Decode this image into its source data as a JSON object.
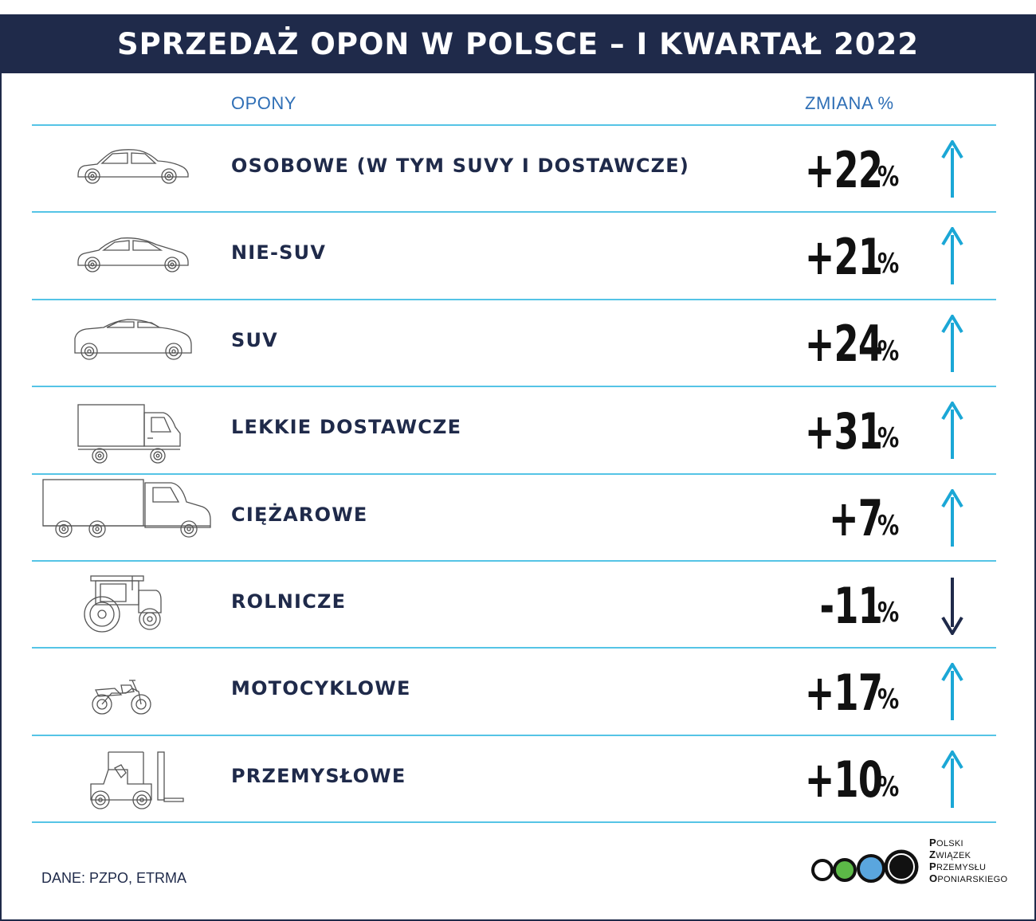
{
  "title": "SPRZEDAŻ OPON W POLSCE – I KWARTAŁ 2022",
  "columns": {
    "tyres": "OPONY",
    "change": "ZMIANA %"
  },
  "colors": {
    "navy": "#1f2a4a",
    "accent_cyan": "#1ba7d6",
    "divider": "#55c4e6",
    "header_text": "#2f6fb6",
    "arrow_down": "#1f2a4a"
  },
  "chart_data": {
    "type": "table",
    "title": "SPRZEDAŻ OPON W POLSCE – I KWARTAŁ 2022",
    "columns": [
      "OPONY",
      "ZMIANA %"
    ],
    "rows": [
      {
        "category": "OSOBOWE (W TYM SUVY I DOSTAWCZE)",
        "value": 22,
        "display": "+22",
        "unit": "%",
        "direction": "up",
        "icon": "car-icon"
      },
      {
        "category": "NIE-SUV",
        "value": 21,
        "display": "+21",
        "unit": "%",
        "direction": "up",
        "icon": "hatchback-icon"
      },
      {
        "category": "SUV",
        "value": 24,
        "display": "+24",
        "unit": "%",
        "direction": "up",
        "icon": "suv-icon"
      },
      {
        "category": "LEKKIE DOSTAWCZE",
        "value": 31,
        "display": "+31",
        "unit": "%",
        "direction": "up",
        "icon": "van-icon"
      },
      {
        "category": "CIĘŻAROWE",
        "value": 7,
        "display": "+7",
        "unit": "%",
        "direction": "up",
        "icon": "truck-icon"
      },
      {
        "category": "ROLNICZE",
        "value": -11,
        "display": "-11",
        "unit": "%",
        "direction": "down",
        "icon": "tractor-icon"
      },
      {
        "category": "MOTOCYKLOWE",
        "value": 17,
        "display": "+17",
        "unit": "%",
        "direction": "up",
        "icon": "motorcycle-icon"
      },
      {
        "category": "PRZEMYSŁOWE",
        "value": 10,
        "display": "+10",
        "unit": "%",
        "direction": "up",
        "icon": "forklift-icon"
      }
    ]
  },
  "source": "DANE: PZPO, ETRMA",
  "logo": {
    "lines": [
      {
        "initial": "P",
        "rest": "OLSKI"
      },
      {
        "initial": "Z",
        "rest": "WIĄZEK"
      },
      {
        "initial": "P",
        "rest": "RZEMYSŁU"
      },
      {
        "initial": "O",
        "rest": "PONIARSKIEGO"
      }
    ],
    "circle_colors": [
      "#ffffff",
      "#5cb947",
      "#5aa6de",
      "#111111"
    ]
  }
}
